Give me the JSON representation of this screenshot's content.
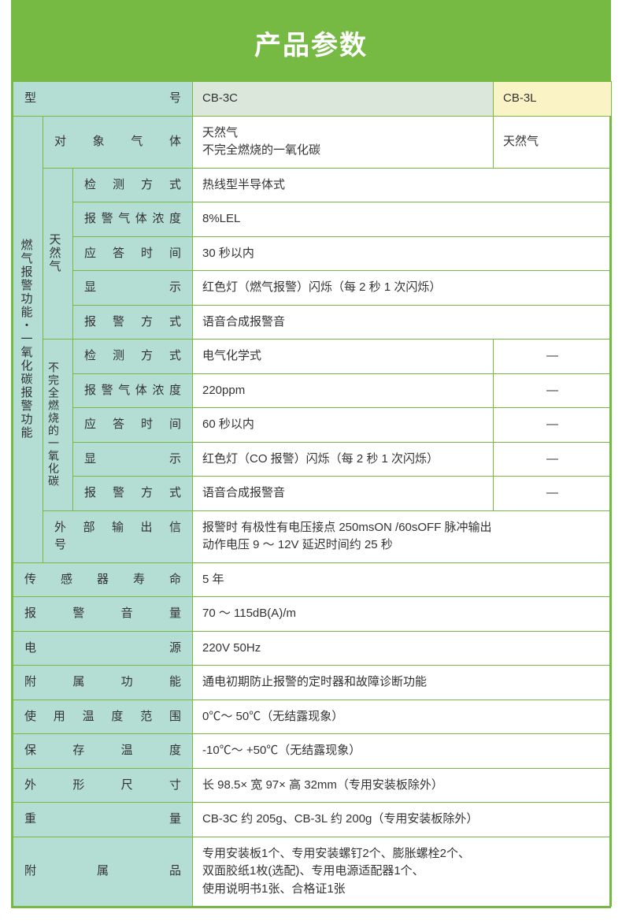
{
  "colors": {
    "title_bg": "#76b943",
    "title_text": "#ffffff",
    "border": "#76b943",
    "label_bg": "#b4ddd4",
    "col1_bg": "#dbe7db",
    "col2_bg": "#faf3c6",
    "text": "#333333",
    "title_fontsize": 34
  },
  "title": "产品参数",
  "header": {
    "model_label": "型　　　　　　　号",
    "col1": "CB-3C",
    "col2": "CB-3L"
  },
  "target_gas": {
    "label": "对　象　气　体",
    "col1": "天然气\n不完全燃烧的一氧化碳",
    "col2": "天然气"
  },
  "section_label": "燃气报警功能・一氧化碳报警功能",
  "natural_gas": {
    "label": "天然气",
    "rows": [
      {
        "label": "检　测　方　式",
        "val": "热线型半导体式"
      },
      {
        "label": "报警气体浓度",
        "val": "8%LEL"
      },
      {
        "label": "应　答　时　间",
        "val": "30 秒以内"
      },
      {
        "label": "显　　　　　示",
        "val": "红色灯（燃气报警）闪烁（每 2 秒 1 次闪烁）"
      },
      {
        "label": "报　警　方　式",
        "val": "语音合成报警音"
      }
    ]
  },
  "co_gas": {
    "label": "不完全燃烧的一氧化碳",
    "rows": [
      {
        "label": "检　测　方　式",
        "val": "电气化学式",
        "col2": "—"
      },
      {
        "label": "报警气体浓度",
        "val": "220ppm",
        "col2": "—"
      },
      {
        "label": "应　答　时　间",
        "val": "60 秒以内",
        "col2": "—"
      },
      {
        "label": "显　　　　　示",
        "val": "红色灯（CO 报警）闪烁（每 2 秒 1 次闪烁）",
        "col2": "—"
      },
      {
        "label": "报　警　方　式",
        "val": "语音合成报警音",
        "col2": "—"
      }
    ]
  },
  "ext_output": {
    "label": "外　部　输　出　信　号",
    "val": "报警时 有极性有电压接点 250msON /60sOFF 脉冲输出\n动作电压 9 ～ 12V 延迟时间约 25 秒"
  },
  "bottom_rows": [
    {
      "label": "传　感　器　寿　命",
      "val": "5 年"
    },
    {
      "label": "报　　警　　音　　量",
      "val": "70 ～ 115dB(A)/m"
    },
    {
      "label": "电　　　　　　　　源",
      "val": "220V 50Hz"
    },
    {
      "label": "附　　属　　功　　能",
      "val": "通电初期防止报警的定时器和故障诊断功能"
    },
    {
      "label": "使　用　温　度　范　围",
      "val": "0℃～ 50℃（无结露现象）"
    },
    {
      "label": "保　　存　　温　　度",
      "val": "-10℃～ +50℃（无结露现象）"
    },
    {
      "label": "外　　形　　尺　　寸",
      "val": "长 98.5× 宽 97× 高 32mm（专用安装板除外）"
    },
    {
      "label": "重　　　　　　　　量",
      "val": "CB-3C 约 205g、CB-3L 约 200g（专用安装板除外）"
    },
    {
      "label": "附　　　属　　　品",
      "val": "专用安装板1个、专用安装螺钉2个、膨胀螺栓2个、\n双面胶纸1枚(选配)、专用电源适配器1个、\n使用说明书1张、合格证1张"
    }
  ]
}
